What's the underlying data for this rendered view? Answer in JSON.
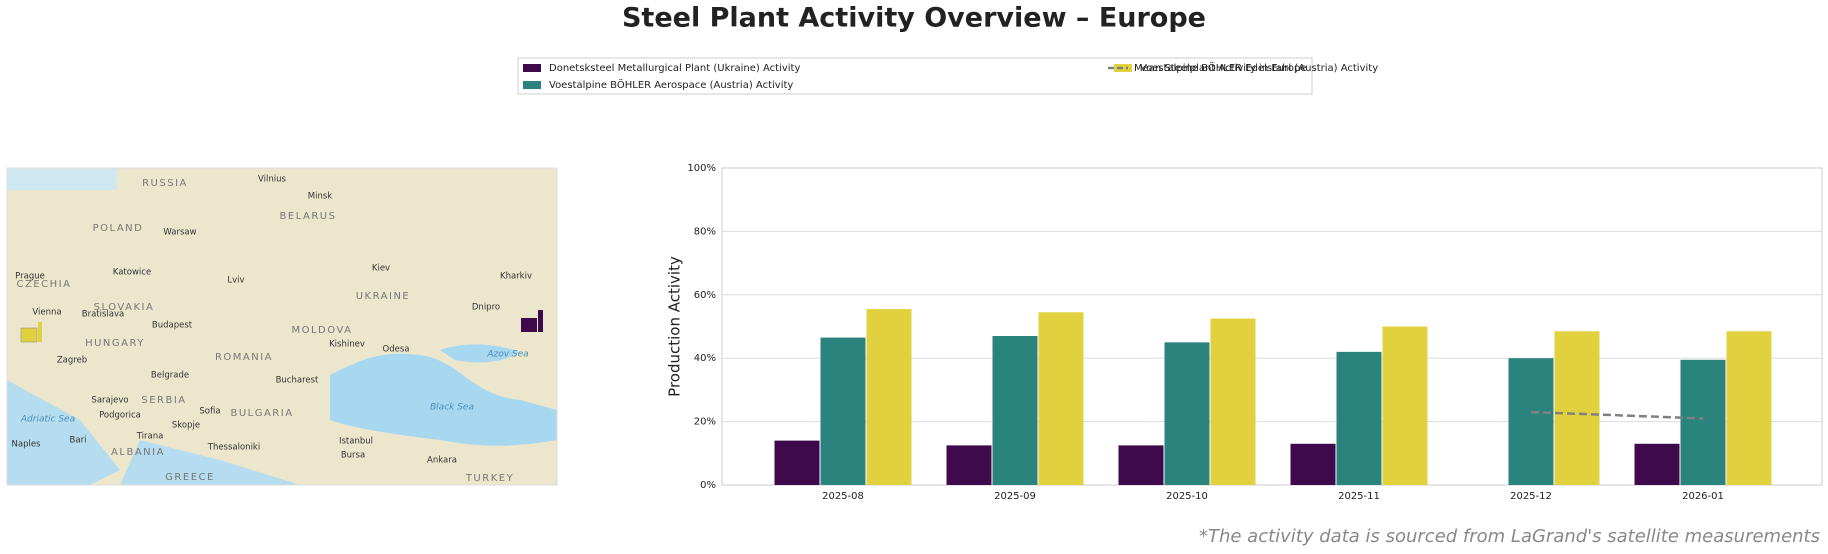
{
  "chart_data": {
    "type": "bar",
    "title": "Steel Plant Activity Overview – Europe",
    "y_label": "Production Activity",
    "footnote": "*The activity data is sourced from LaGrand's satellite measurements",
    "categories": [
      "2025-08",
      "2025-09",
      "2025-10",
      "2025-11",
      "2025-12",
      "2026-01"
    ],
    "series": [
      {
        "name": "Donetsksteel Metallurgical Plant (Ukraine) Activity",
        "color": "#3e0a4c",
        "values": [
          14,
          12.5,
          12.5,
          13,
          null,
          13
        ]
      },
      {
        "name": "Voestalpine BÖHLER Aerospace (Austria) Activity",
        "color": "#2b837e",
        "values": [
          46.5,
          47,
          45,
          42,
          40,
          39.5
        ]
      },
      {
        "name": "Voestalpine BÖHLER Edelstahl (Austria) Activity",
        "color": "#e2d13e",
        "values": [
          55.5,
          54.5,
          52.5,
          50,
          48.5,
          48.5
        ]
      },
      {
        "name": "Mean Steelplant Activity in Europe",
        "type": "line",
        "color": "#808080",
        "dashed": true,
        "values": [
          null,
          null,
          null,
          null,
          23,
          21
        ]
      }
    ],
    "ylim": [
      0,
      100
    ],
    "yticks": [
      {
        "value": 0,
        "label": "0%"
      },
      {
        "value": 20,
        "label": "20%"
      },
      {
        "value": 40,
        "label": "40%"
      },
      {
        "value": 60,
        "label": "60%"
      },
      {
        "value": 80,
        "label": "80%"
      },
      {
        "value": 100,
        "label": "100%"
      }
    ],
    "grid": true,
    "legend": "top",
    "map_labels": [
      "RUSSIA",
      "Vilnius",
      "Minsk",
      "BELARUS",
      "POLAND",
      "Warsaw",
      "Katowice",
      "Prague",
      "CZECHIA",
      "Lviv",
      "Kiev",
      "Kharkiv",
      "UKRAINE",
      "Dnipro",
      "SLOVAKIA",
      "Vienna",
      "Bratislava",
      "Budapest",
      "HUNGARY",
      "Zagreb",
      "MOLDOVA",
      "Kishinev",
      "ROMANIA",
      "Odesa",
      "Azov Sea",
      "Belgrade",
      "Bucharest",
      "SERBIA",
      "Sarajevo",
      "BULGARIA",
      "Sofia",
      "Podgorica",
      "Skopje",
      "Black Sea",
      "Adriatic Sea",
      "Tirana",
      "ALBANIA",
      "Naples",
      "Bari",
      "Thessaloniki",
      "Istanbul",
      "Bursa",
      "Ankara",
      "TURKEY",
      "GREECE"
    ]
  }
}
